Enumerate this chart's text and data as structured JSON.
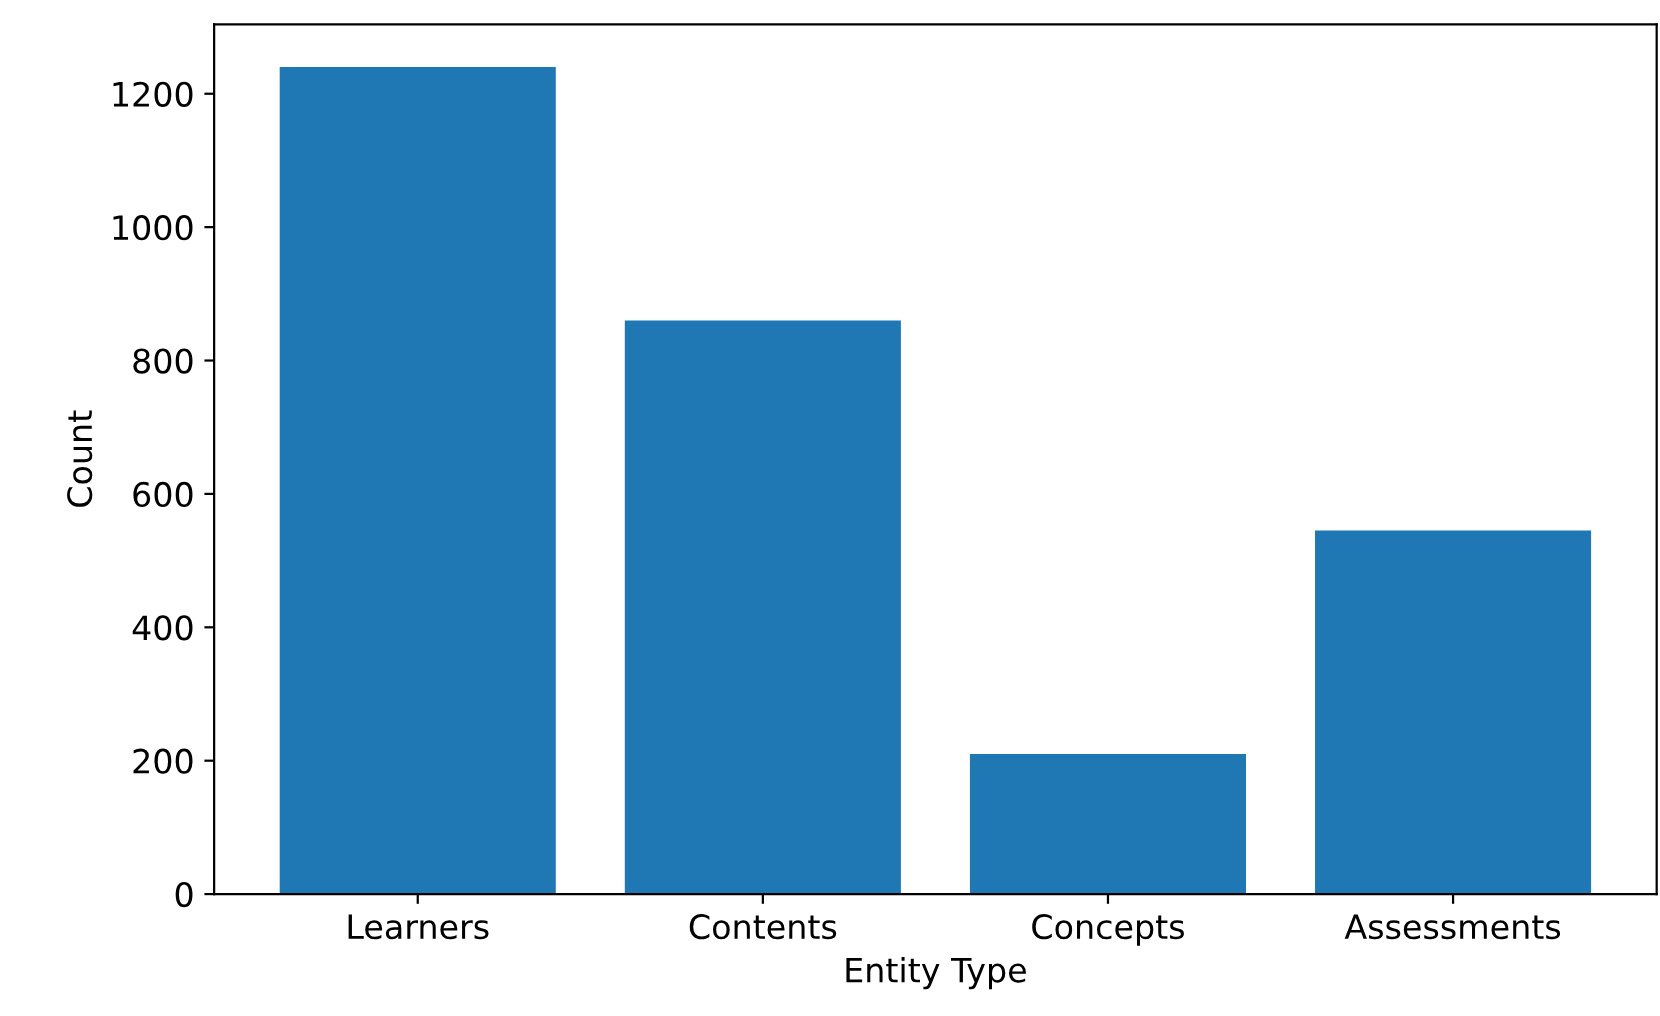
{
  "chart_data": {
    "type": "bar",
    "xlabel": "Entity Type",
    "ylabel": "Count",
    "categories": [
      "Learners",
      "Contents",
      "Concepts",
      "Assessments"
    ],
    "values": [
      1240,
      860,
      210,
      545
    ],
    "color": "#1f77b4",
    "ylim": [
      0,
      1304
    ],
    "yticks": [
      0,
      200,
      400,
      600,
      800,
      1000,
      1200
    ],
    "grid": false
  }
}
